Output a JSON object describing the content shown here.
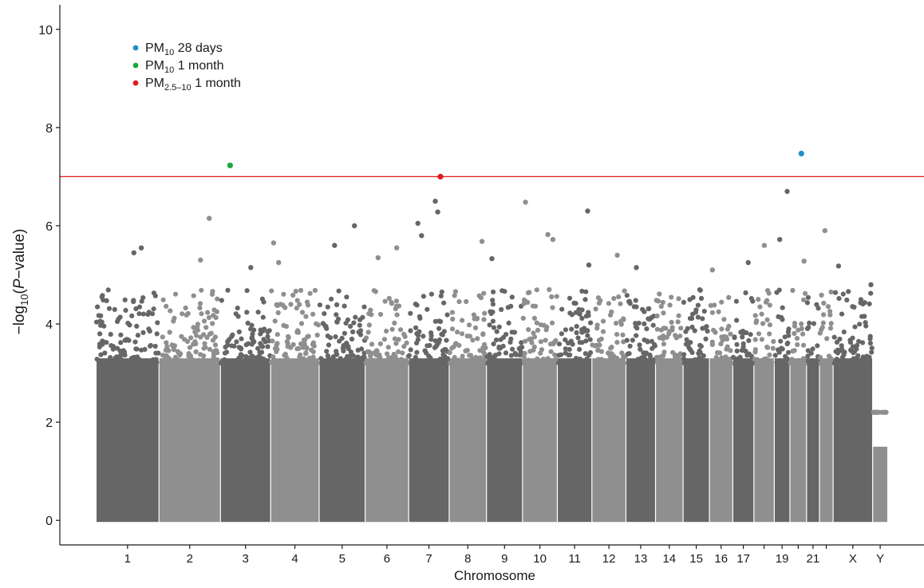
{
  "chart_data": {
    "type": "scatter",
    "subtype": "manhattan",
    "title": "",
    "xlabel": "Chromosome",
    "ylabel": {
      "prefix": "−log",
      "sub": "10",
      "open": "(",
      "italic": "P",
      "suffix": "−value)"
    },
    "ylim": [
      -0.5,
      10.5
    ],
    "yticks": [
      0,
      2,
      4,
      6,
      8,
      10
    ],
    "grid": false,
    "legend_position": "top-left",
    "threshold": {
      "value": 7.0,
      "color": "#e0191d"
    },
    "colors": {
      "dark": "#666666",
      "light": "#8f8f8f",
      "axis": "#1a1a1a"
    },
    "chromosomes": [
      {
        "name": "1",
        "label": "1",
        "len": 249
      },
      {
        "name": "2",
        "label": "2",
        "len": 243
      },
      {
        "name": "3",
        "label": "3",
        "len": 198
      },
      {
        "name": "4",
        "label": "4",
        "len": 191
      },
      {
        "name": "5",
        "label": "5",
        "len": 181
      },
      {
        "name": "6",
        "label": "6",
        "len": 171
      },
      {
        "name": "7",
        "label": "7",
        "len": 159
      },
      {
        "name": "8",
        "label": "8",
        "len": 146
      },
      {
        "name": "9",
        "label": "9",
        "len": 141
      },
      {
        "name": "10",
        "label": "10",
        "len": 136
      },
      {
        "name": "11",
        "label": "11",
        "len": 135
      },
      {
        "name": "12",
        "label": "12",
        "len": 133
      },
      {
        "name": "13",
        "label": "13",
        "len": 115
      },
      {
        "name": "14",
        "label": "14",
        "len": 107
      },
      {
        "name": "15",
        "label": "15",
        "len": 102
      },
      {
        "name": "16",
        "label": "16",
        "len": 90
      },
      {
        "name": "17",
        "label": "17",
        "len": 81
      },
      {
        "name": "18",
        "label": "",
        "len": 78
      },
      {
        "name": "19",
        "label": "19",
        "len": 59
      },
      {
        "name": "20",
        "label": "",
        "len": 63
      },
      {
        "name": "21",
        "label": "21",
        "len": 48
      },
      {
        "name": "22",
        "label": "",
        "len": 51
      },
      {
        "name": "X",
        "label": "X",
        "len": 155
      },
      {
        "name": "Y",
        "label": "Y",
        "len": 57
      }
    ],
    "highlighted": [
      {
        "series": "PM10 28 days",
        "chromosome": "20",
        "position_mb": 44,
        "value": 7.47
      },
      {
        "series": "PM10 1 month",
        "chromosome": "3",
        "position_mb": 37,
        "value": 7.23
      },
      {
        "series": "PM2.5–10 1 month",
        "chromosome": "7",
        "position_mb": 126,
        "value": 7.0
      }
    ],
    "top_hits": [
      {
        "chromosome": "1",
        "position_mb": 180,
        "value": 5.55
      },
      {
        "chromosome": "1",
        "position_mb": 150,
        "value": 5.45
      },
      {
        "chromosome": "2",
        "position_mb": 200,
        "value": 6.15
      },
      {
        "chromosome": "2",
        "position_mb": 165,
        "value": 5.3
      },
      {
        "chromosome": "3",
        "position_mb": 120,
        "value": 5.15
      },
      {
        "chromosome": "4",
        "position_mb": 10,
        "value": 5.65
      },
      {
        "chromosome": "4",
        "position_mb": 30,
        "value": 5.25
      },
      {
        "chromosome": "5",
        "position_mb": 60,
        "value": 5.6
      },
      {
        "chromosome": "5",
        "position_mb": 140,
        "value": 6.0
      },
      {
        "chromosome": "6",
        "position_mb": 50,
        "value": 5.35
      },
      {
        "chromosome": "6",
        "position_mb": 125,
        "value": 5.55
      },
      {
        "chromosome": "7",
        "position_mb": 35,
        "value": 6.05
      },
      {
        "chromosome": "7",
        "position_mb": 50,
        "value": 5.8
      },
      {
        "chromosome": "7",
        "position_mb": 105,
        "value": 6.5
      },
      {
        "chromosome": "7",
        "position_mb": 115,
        "value": 6.28
      },
      {
        "chromosome": "8",
        "position_mb": 130,
        "value": 5.68
      },
      {
        "chromosome": "9",
        "position_mb": 20,
        "value": 5.33
      },
      {
        "chromosome": "10",
        "position_mb": 10,
        "value": 6.48
      },
      {
        "chromosome": "10",
        "position_mb": 100,
        "value": 5.82
      },
      {
        "chromosome": "10",
        "position_mb": 120,
        "value": 5.72
      },
      {
        "chromosome": "11",
        "position_mb": 120,
        "value": 6.3
      },
      {
        "chromosome": "11",
        "position_mb": 125,
        "value": 5.2
      },
      {
        "chromosome": "12",
        "position_mb": 100,
        "value": 5.4
      },
      {
        "chromosome": "13",
        "position_mb": 40,
        "value": 5.15
      },
      {
        "chromosome": "16",
        "position_mb": 10,
        "value": 5.1
      },
      {
        "chromosome": "17",
        "position_mb": 60,
        "value": 5.25
      },
      {
        "chromosome": "18",
        "position_mb": 40,
        "value": 5.6
      },
      {
        "chromosome": "19",
        "position_mb": 20,
        "value": 5.72
      },
      {
        "chromosome": "19",
        "position_mb": 50,
        "value": 6.7
      },
      {
        "chromosome": "20",
        "position_mb": 55,
        "value": 5.28
      },
      {
        "chromosome": "22",
        "position_mb": 20,
        "value": 5.9
      },
      {
        "chromosome": "X",
        "position_mb": 20,
        "value": 5.18
      },
      {
        "chromosome": "X",
        "position_mb": 150,
        "value": 4.8
      }
    ],
    "legend": [
      {
        "base": "PM",
        "sub": "10",
        "rest": " 28 days",
        "color": "#1e90c8"
      },
      {
        "base": "PM",
        "sub": "10",
        "rest": " 1 month",
        "color": "#1aa83a"
      },
      {
        "base": "PM",
        "sub": "2.5–10",
        "rest": " 1 month",
        "color": "#e0191d"
      }
    ]
  }
}
